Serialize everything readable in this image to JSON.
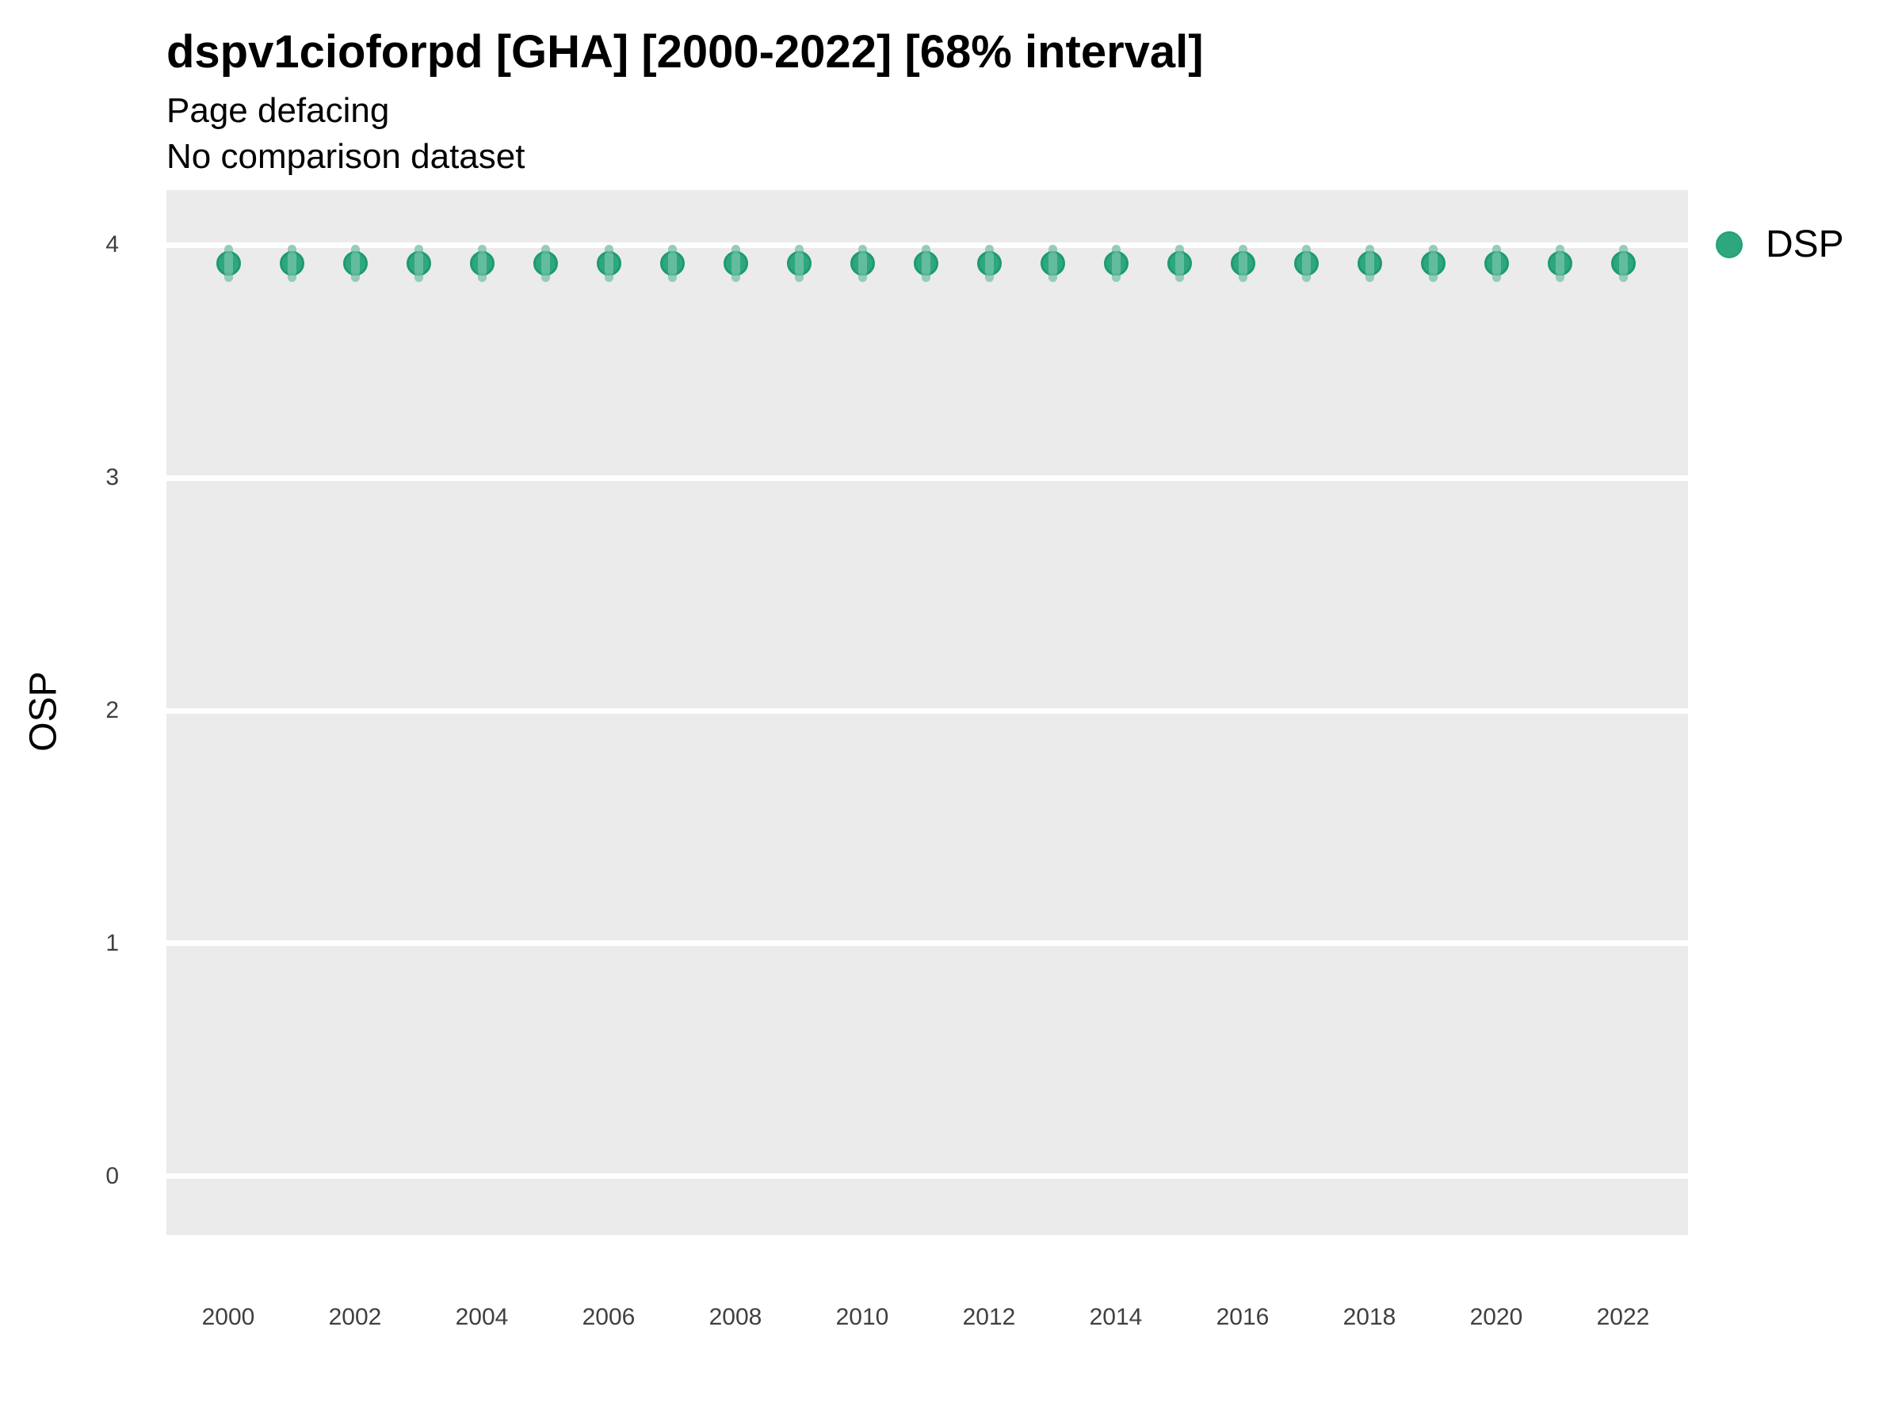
{
  "header": {
    "title": "dspv1cioforpd [GHA] [2000-2022] [68% interval]",
    "subtitle": "Page defacing",
    "comparison_note": "No comparison dataset"
  },
  "legend": {
    "position": "right",
    "entries": [
      {
        "label": "DSP",
        "color": "#2EA77F"
      }
    ]
  },
  "colors": {
    "point_fill": "#2EA77F",
    "point_border": "#1E9A70",
    "interval_bar": "#93CDB9",
    "interval_overlay": "rgba(163,214,196,0.45)",
    "panel_bg": "#EBEBEB",
    "gridline": "#FFFFFF",
    "tick_label": "#404040"
  },
  "chart_data": {
    "type": "scatter",
    "title": "dspv1cioforpd [GHA] [2000-2022] [68% interval]",
    "subtitle": "Page defacing",
    "note": "No comparison dataset",
    "xlabel": "",
    "ylabel": "OSP",
    "xlim": [
      1999.025,
      2023.025
    ],
    "ylim": [
      -0.252,
      4.235
    ],
    "x_ticks": [
      2000,
      2002,
      2004,
      2006,
      2008,
      2010,
      2012,
      2014,
      2016,
      2018,
      2020,
      2022
    ],
    "y_ticks": [
      0,
      1,
      2,
      3,
      4
    ],
    "grid": "horizontal major gridlines only, white on gray panel",
    "legend_position": "right",
    "interval": "68%",
    "series": [
      {
        "name": "DSP",
        "x": [
          2000,
          2001,
          2002,
          2003,
          2004,
          2005,
          2006,
          2007,
          2008,
          2009,
          2010,
          2011,
          2012,
          2013,
          2014,
          2015,
          2016,
          2017,
          2018,
          2019,
          2020,
          2021,
          2022
        ],
        "mean": [
          3.92,
          3.92,
          3.92,
          3.92,
          3.92,
          3.92,
          3.92,
          3.92,
          3.92,
          3.92,
          3.92,
          3.92,
          3.92,
          3.92,
          3.92,
          3.92,
          3.92,
          3.92,
          3.92,
          3.92,
          3.92,
          3.92,
          3.92
        ],
        "lo": [
          3.84,
          3.84,
          3.84,
          3.84,
          3.84,
          3.84,
          3.84,
          3.84,
          3.84,
          3.84,
          3.84,
          3.84,
          3.84,
          3.84,
          3.84,
          3.84,
          3.84,
          3.84,
          3.84,
          3.84,
          3.84,
          3.84,
          3.84
        ],
        "hi": [
          4.0,
          4.0,
          4.0,
          4.0,
          4.0,
          4.0,
          4.0,
          4.0,
          4.0,
          4.0,
          4.0,
          4.0,
          4.0,
          4.0,
          4.0,
          4.0,
          4.0,
          4.0,
          4.0,
          4.0,
          4.0,
          4.0,
          4.0
        ]
      }
    ]
  }
}
